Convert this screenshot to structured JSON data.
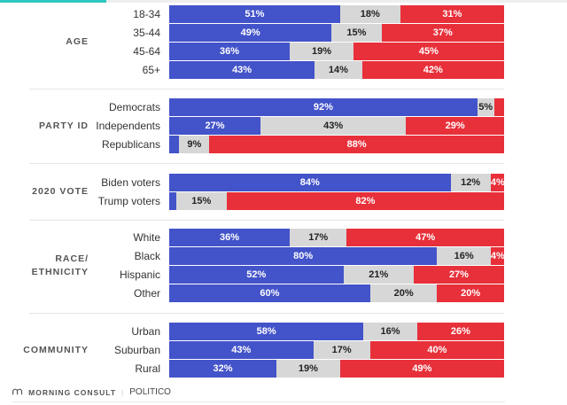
{
  "chart_data": {
    "type": "bar",
    "orientation": "horizontal",
    "stacked": true,
    "xlim": [
      0,
      100
    ],
    "colors": {
      "blue": "#4353c9",
      "grey": "#d7d7d7",
      "red": "#e8303a"
    },
    "groups": [
      {
        "label": "AGE",
        "rows": [
          {
            "category": "18-34",
            "values": [
              51,
              18,
              31
            ],
            "labels": [
              "51%",
              "18%",
              "31%"
            ]
          },
          {
            "category": "35-44",
            "values": [
              49,
              15,
              37
            ],
            "labels": [
              "49%",
              "15%",
              "37%"
            ]
          },
          {
            "category": "45-64",
            "values": [
              36,
              19,
              45
            ],
            "labels": [
              "36%",
              "19%",
              "45%"
            ]
          },
          {
            "category": "65+",
            "values": [
              43,
              14,
              42
            ],
            "labels": [
              "43%",
              "14%",
              "42%"
            ]
          }
        ]
      },
      {
        "label": "PARTY ID",
        "rows": [
          {
            "category": "Democrats",
            "values": [
              92,
              5,
              3
            ],
            "labels": [
              "92%",
              "5%",
              ""
            ]
          },
          {
            "category": "Independents",
            "values": [
              27,
              43,
              29
            ],
            "labels": [
              "27%",
              "43%",
              "29%"
            ]
          },
          {
            "category": "Republicans",
            "values": [
              3,
              9,
              88
            ],
            "labels": [
              "",
              "9%",
              "88%"
            ]
          }
        ]
      },
      {
        "label": "2020 VOTE",
        "rows": [
          {
            "category": "Biden voters",
            "values": [
              84,
              12,
              4
            ],
            "labels": [
              "84%",
              "12%",
              "4%"
            ]
          },
          {
            "category": "Trump voters",
            "values": [
              2,
              15,
              82
            ],
            "labels": [
              "",
              "15%",
              "82%"
            ]
          }
        ]
      },
      {
        "label": "RACE/ ETHNICITY",
        "rows": [
          {
            "category": "White",
            "values": [
              36,
              17,
              47
            ],
            "labels": [
              "36%",
              "17%",
              "47%"
            ]
          },
          {
            "category": "Black",
            "values": [
              80,
              16,
              4
            ],
            "labels": [
              "80%",
              "16%",
              "4%"
            ]
          },
          {
            "category": "Hispanic",
            "values": [
              52,
              21,
              27
            ],
            "labels": [
              "52%",
              "21%",
              "27%"
            ]
          },
          {
            "category": "Other",
            "values": [
              60,
              20,
              20
            ],
            "labels": [
              "60%",
              "20%",
              "20%"
            ]
          }
        ]
      },
      {
        "label": "COMMUNITY",
        "rows": [
          {
            "category": "Urban",
            "values": [
              58,
              16,
              26
            ],
            "labels": [
              "58%",
              "16%",
              "26%"
            ]
          },
          {
            "category": "Suburban",
            "values": [
              43,
              17,
              40
            ],
            "labels": [
              "43%",
              "17%",
              "40%"
            ]
          },
          {
            "category": "Rural",
            "values": [
              32,
              19,
              49
            ],
            "labels": [
              "32%",
              "19%",
              "49%"
            ]
          }
        ]
      }
    ]
  },
  "footer": {
    "brand": "MORNING CONSULT",
    "partner": "POLITICO"
  }
}
